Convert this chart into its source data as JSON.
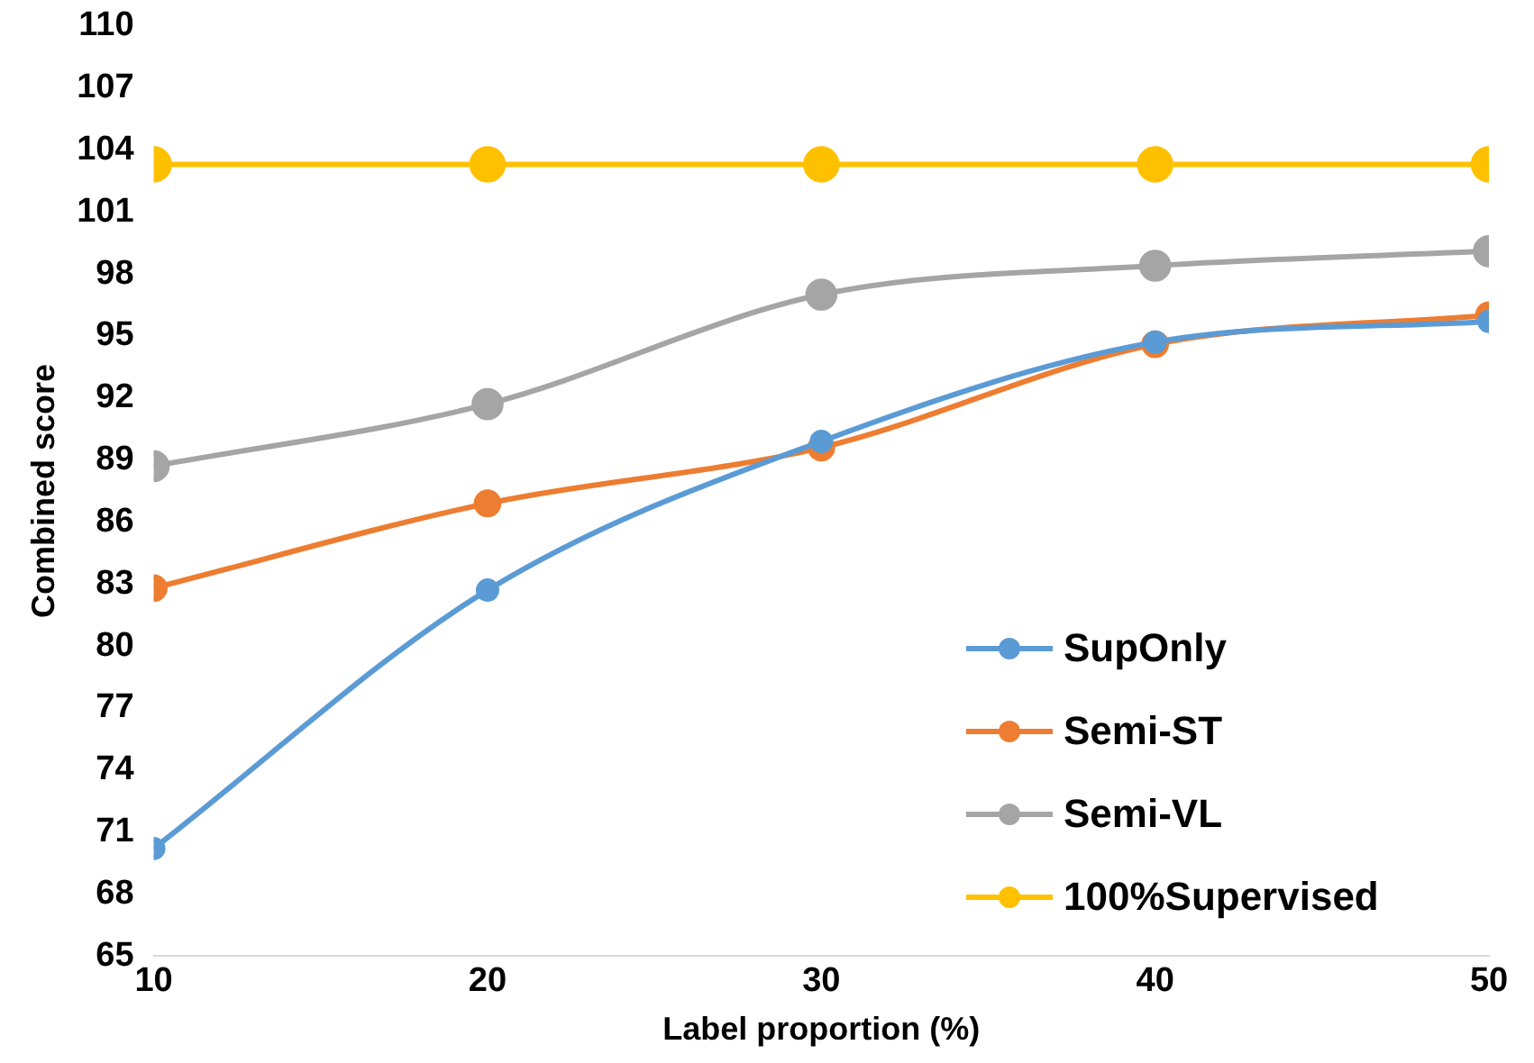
{
  "chart_data": {
    "type": "line",
    "xlabel": "Label proportion (%)",
    "ylabel": "Combined score",
    "x": [
      10,
      20,
      30,
      40,
      50
    ],
    "series": [
      {
        "name": "SupOnly",
        "color": "#5b9bd5",
        "values": [
          70.2,
          82.7,
          89.9,
          94.7,
          95.7
        ]
      },
      {
        "name": "Semi-ST",
        "color": "#ed7d31",
        "values": [
          82.8,
          86.9,
          89.6,
          94.6,
          96.0
        ]
      },
      {
        "name": "Semi-VL",
        "color": "#a5a5a5",
        "values": [
          88.7,
          91.7,
          97.0,
          98.4,
          99.1
        ]
      },
      {
        "name": "100%Supervised",
        "color": "#ffc000",
        "values": [
          103.3,
          103.3,
          103.3,
          103.3,
          103.3
        ]
      }
    ],
    "xlim": [
      10,
      50
    ],
    "xticks": [
      10,
      20,
      30,
      40,
      50
    ],
    "ylim": [
      65,
      110
    ],
    "yticks": [
      65,
      68,
      71,
      74,
      77,
      80,
      83,
      86,
      89,
      92,
      95,
      98,
      101,
      104,
      107,
      110
    ],
    "grid": false,
    "legend": "bottom right",
    "marker": "circle",
    "line_style": "solid"
  }
}
